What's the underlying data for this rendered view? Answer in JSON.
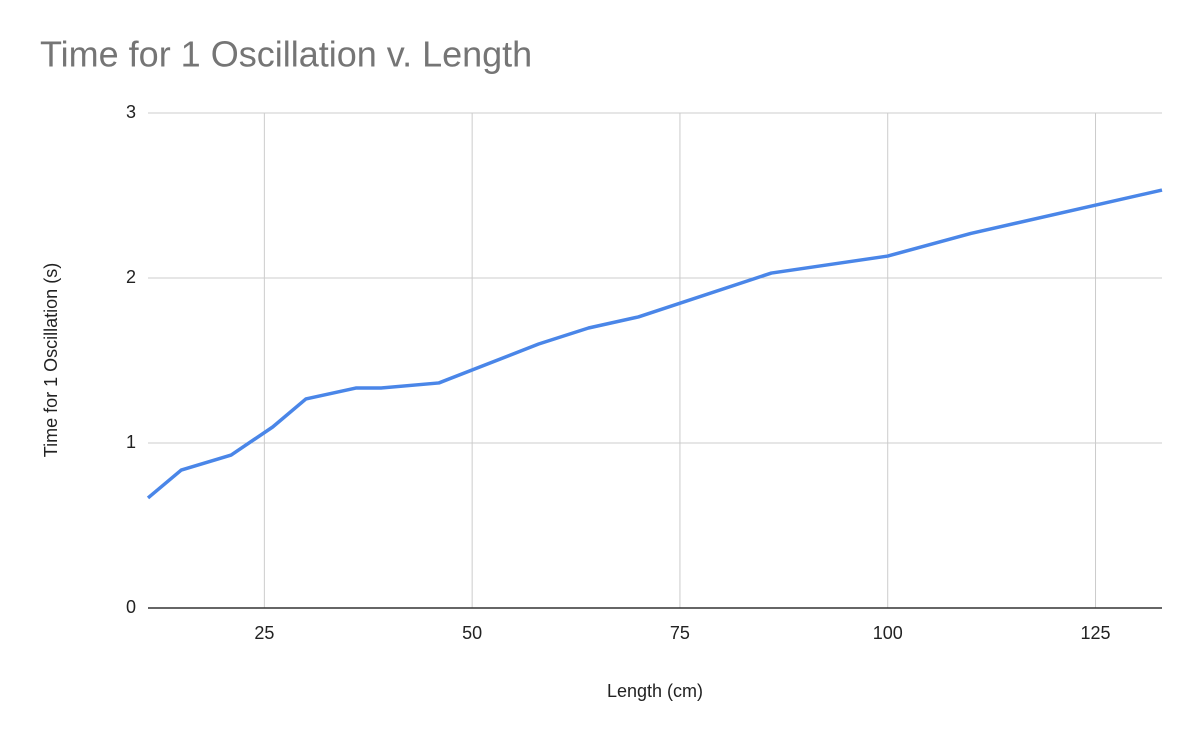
{
  "chart_data": {
    "type": "line",
    "title": "Time for 1 Oscillation v. Length",
    "x_label": "Length (cm)",
    "y_label": "Time for 1 Oscillation (s)",
    "x": [
      11,
      15,
      21,
      26,
      30,
      36,
      39,
      46,
      58,
      64,
      70,
      86,
      100,
      110,
      133
    ],
    "series": [
      {
        "name": "Time for 1 Oscillation (s)",
        "color": "#4a86e8",
        "values": [
          0.667,
          0.836,
          0.927,
          1.097,
          1.267,
          1.333,
          1.333,
          1.364,
          1.6,
          1.697,
          1.764,
          2.03,
          2.133,
          2.27,
          2.533
        ]
      }
    ],
    "xlim": [
      11,
      133
    ],
    "xticks": [
      25,
      50,
      75,
      100,
      125
    ],
    "ylim": [
      0,
      3
    ],
    "yticks": [
      0,
      1,
      2,
      3
    ],
    "grid": true
  }
}
